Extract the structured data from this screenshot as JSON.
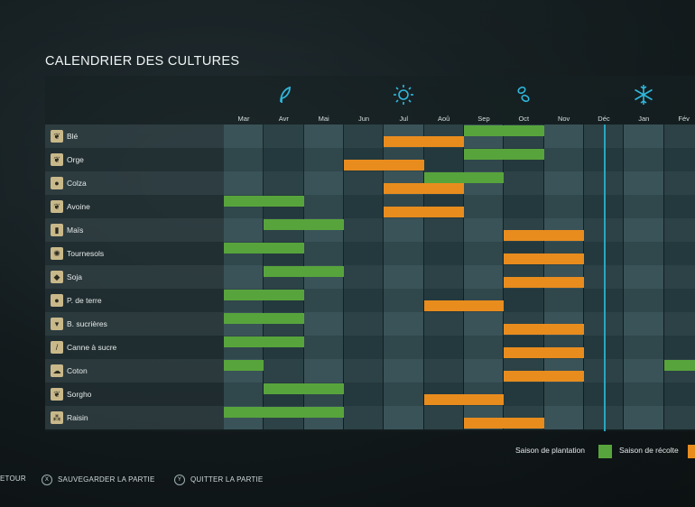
{
  "title": "CALENDRIER DES CULTURES",
  "months": [
    "Mar",
    "Avr",
    "Mai",
    "Jun",
    "Jul",
    "Aoû",
    "Sep",
    "Oct",
    "Nov",
    "Déc",
    "Jan",
    "Fév"
  ],
  "season_icons": [
    "sprout-icon",
    "sun-icon",
    "falling-leaves-icon",
    "snowflake-icon"
  ],
  "crops": [
    {
      "name": "Blé",
      "icon": "wheat-icon"
    },
    {
      "name": "Orge",
      "icon": "barley-icon"
    },
    {
      "name": "Colza",
      "icon": "canola-icon"
    },
    {
      "name": "Avoine",
      "icon": "oat-icon"
    },
    {
      "name": "Maïs",
      "icon": "corn-icon"
    },
    {
      "name": "Tournesols",
      "icon": "sunflower-icon"
    },
    {
      "name": "Soja",
      "icon": "soybean-icon"
    },
    {
      "name": "P. de terre",
      "icon": "potato-icon"
    },
    {
      "name": "B. sucrières",
      "icon": "sugarbeet-icon"
    },
    {
      "name": "Canne à sucre",
      "icon": "sugarcane-icon"
    },
    {
      "name": "Coton",
      "icon": "cotton-icon"
    },
    {
      "name": "Sorgho",
      "icon": "sorghum-icon"
    },
    {
      "name": "Raisin",
      "icon": "grape-icon"
    }
  ],
  "schedule": [
    {
      "plant": [
        [
          6,
          8
        ]
      ],
      "harvest": [
        [
          4,
          6
        ]
      ]
    },
    {
      "plant": [
        [
          6,
          8
        ]
      ],
      "harvest": [
        [
          3,
          5
        ]
      ]
    },
    {
      "plant": [
        [
          5,
          7
        ]
      ],
      "harvest": [
        [
          4,
          6
        ]
      ]
    },
    {
      "plant": [
        [
          0,
          2
        ]
      ],
      "harvest": [
        [
          4,
          6
        ]
      ]
    },
    {
      "plant": [
        [
          1,
          3
        ]
      ],
      "harvest": [
        [
          7,
          9
        ]
      ]
    },
    {
      "plant": [
        [
          0,
          2
        ]
      ],
      "harvest": [
        [
          7,
          9
        ]
      ]
    },
    {
      "plant": [
        [
          1,
          3
        ]
      ],
      "harvest": [
        [
          7,
          9
        ]
      ]
    },
    {
      "plant": [
        [
          0,
          2
        ]
      ],
      "harvest": [
        [
          5,
          7
        ]
      ]
    },
    {
      "plant": [
        [
          0,
          2
        ]
      ],
      "harvest": [
        [
          7,
          9
        ]
      ]
    },
    {
      "plant": [
        [
          0,
          2
        ]
      ],
      "harvest": [
        [
          7,
          9
        ]
      ]
    },
    {
      "plant": [
        [
          0,
          1
        ],
        [
          11,
          12
        ]
      ],
      "harvest": [
        [
          7,
          9
        ]
      ]
    },
    {
      "plant": [
        [
          1,
          3
        ]
      ],
      "harvest": [
        [
          5,
          7
        ]
      ]
    },
    {
      "plant": [
        [
          0,
          3
        ]
      ],
      "harvest": [
        [
          6,
          8
        ]
      ]
    }
  ],
  "legend": {
    "plant_label": "Saison de plantation",
    "harvest_label": "Saison de récolte",
    "plant_color": "#58a43c",
    "harvest_color": "#e88c1e"
  },
  "footer": {
    "back": "ETOUR",
    "save": "SAUVEGARDER LA PARTIE",
    "quit": "QUITTER LA PARTIE",
    "save_key": "X",
    "quit_key": "Y"
  }
}
